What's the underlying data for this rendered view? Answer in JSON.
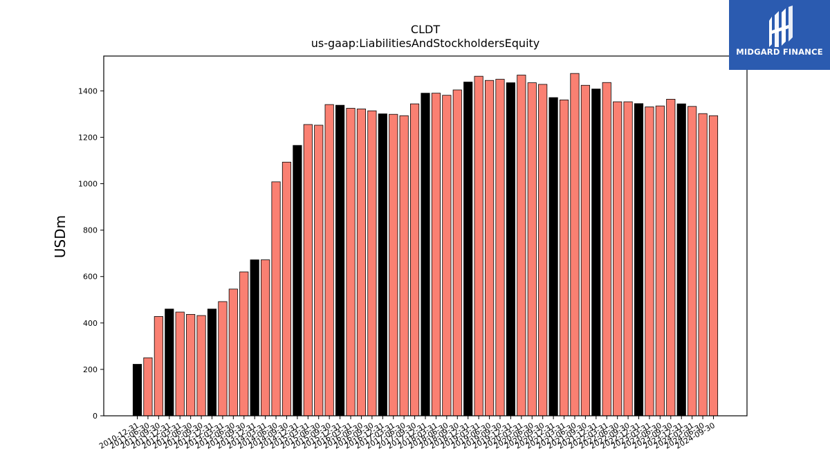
{
  "chart_data": {
    "type": "bar",
    "title": "CLDT",
    "subtitle": "us-gaap:LiabilitiesAndStockholdersEquity",
    "xlabel": "",
    "ylabel": "USDm",
    "ylim": [
      0,
      1550
    ],
    "yticks": [
      0,
      200,
      400,
      600,
      800,
      1000,
      1200,
      1400
    ],
    "grid": false,
    "colors": {
      "annual": "#000000",
      "quarterly": "#fa8072",
      "edge": "#000000"
    },
    "categories": [
      "2010-12-31",
      "2011-06-30",
      "2011-09-30",
      "2011-12-31",
      "2012-03-31",
      "2012-06-30",
      "2012-09-30",
      "2012-12-31",
      "2013-03-31",
      "2013-06-30",
      "2013-09-30",
      "2013-12-31",
      "2014-03-31",
      "2014-06-30",
      "2014-09-30",
      "2014-12-31",
      "2015-03-31",
      "2015-06-30",
      "2015-09-30",
      "2015-12-31",
      "2016-03-31",
      "2016-06-30",
      "2016-09-30",
      "2016-12-31",
      "2017-03-31",
      "2017-06-30",
      "2017-09-30",
      "2017-12-31",
      "2018-03-31",
      "2018-06-30",
      "2018-09-30",
      "2018-12-31",
      "2019-03-31",
      "2019-06-30",
      "2019-09-30",
      "2019-12-31",
      "2020-03-31",
      "2020-06-30",
      "2020-09-30",
      "2020-12-31",
      "2021-03-31",
      "2021-06-30",
      "2021-09-30",
      "2021-12-31",
      "2022-03-31",
      "2022-06-30",
      "2022-09-30",
      "2022-12-31",
      "2023-03-31",
      "2023-06-30",
      "2023-09-30",
      "2023-12-31",
      "2024-03-31",
      "2024-06-30",
      "2024-09-30"
    ],
    "values": [
      222,
      250,
      428,
      460,
      447,
      437,
      432,
      460,
      492,
      546,
      620,
      672,
      672,
      1008,
      1093,
      1165,
      1255,
      1252,
      1341,
      1338,
      1325,
      1322,
      1314,
      1301,
      1299,
      1293,
      1344,
      1390,
      1390,
      1381,
      1404,
      1438,
      1463,
      1445,
      1450,
      1435,
      1468,
      1435,
      1428,
      1371,
      1361,
      1475,
      1424,
      1408,
      1436,
      1353,
      1353,
      1345,
      1331,
      1335,
      1364,
      1344,
      1333,
      1302,
      1293
    ],
    "annual_flags": [
      1,
      0,
      0,
      1,
      0,
      0,
      0,
      1,
      0,
      0,
      0,
      1,
      0,
      0,
      0,
      1,
      0,
      0,
      0,
      1,
      0,
      0,
      0,
      1,
      0,
      0,
      0,
      1,
      0,
      0,
      0,
      1,
      0,
      0,
      0,
      1,
      0,
      0,
      0,
      1,
      0,
      0,
      0,
      1,
      0,
      0,
      0,
      1,
      0,
      0,
      0,
      1,
      0,
      0,
      0
    ]
  },
  "logo": {
    "text": "MIDGARD FINANCE",
    "icon": "midgard-logo-icon"
  }
}
